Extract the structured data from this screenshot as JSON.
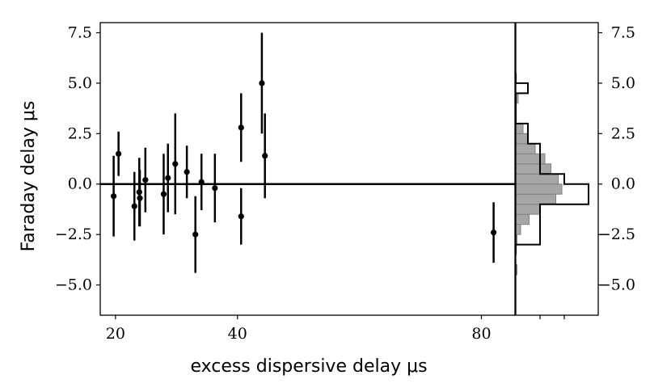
{
  "chart_data": {
    "type": "scatter",
    "xlabel": "excess dispersive delay μs",
    "ylabel": "Faraday delay μs",
    "xlim": [
      17.5,
      85.5
    ],
    "ylim": [
      -6.5,
      8.0
    ],
    "xticks": [
      20,
      40,
      80
    ],
    "yticks": [
      {
        "v": 7.5,
        "label": "7.5"
      },
      {
        "v": 5.0,
        "label": "5.0"
      },
      {
        "v": 2.5,
        "label": "2.5"
      },
      {
        "v": 0.0,
        "label": "0.0"
      },
      {
        "v": -2.5,
        "label": "−2.5"
      },
      {
        "v": -5.0,
        "label": "−5.0"
      }
    ],
    "right_yticks": [
      {
        "v": 7.5,
        "label": "7.5"
      },
      {
        "v": 5.0,
        "label": "5.0"
      },
      {
        "v": 2.5,
        "label": "2.5"
      },
      {
        "v": 0.0,
        "label": "0.0"
      },
      {
        "v": -2.5,
        "label": "−2.5"
      },
      {
        "v": -5.0,
        "label": "−5.0"
      }
    ],
    "reference_line_y": 0.0,
    "points": [
      {
        "x": 19.7,
        "y": -0.6,
        "err": 2.0
      },
      {
        "x": 20.5,
        "y": 1.5,
        "err": 1.1
      },
      {
        "x": 23.1,
        "y": -1.1,
        "err": 1.7
      },
      {
        "x": 23.9,
        "y": -0.4,
        "err": 1.7
      },
      {
        "x": 24.0,
        "y": -0.7,
        "err": 1.4
      },
      {
        "x": 24.9,
        "y": 0.2,
        "err": 1.6
      },
      {
        "x": 27.9,
        "y": -0.5,
        "err": 2.0
      },
      {
        "x": 28.6,
        "y": 0.3,
        "err": 1.7
      },
      {
        "x": 29.8,
        "y": 1.0,
        "err": 2.5
      },
      {
        "x": 31.7,
        "y": 0.6,
        "err": 1.3
      },
      {
        "x": 33.1,
        "y": -2.5,
        "err": 1.9
      },
      {
        "x": 34.1,
        "y": 0.1,
        "err": 1.4
      },
      {
        "x": 36.3,
        "y": -0.2,
        "err": 1.7
      },
      {
        "x": 40.6,
        "y": 2.8,
        "err": 1.7
      },
      {
        "x": 40.6,
        "y": -1.6,
        "err": 1.4
      },
      {
        "x": 44.0,
        "y": 5.0,
        "err": 2.5
      },
      {
        "x": 44.5,
        "y": 1.4,
        "err": 2.1
      },
      {
        "x": 82.0,
        "y": -2.4,
        "err": 1.5
      }
    ],
    "histogram_outline": {
      "bin_width": 0.5,
      "bins": [
        {
          "y0": -3.5,
          "count": 0
        },
        {
          "y0": -3.0,
          "count": 1
        },
        {
          "y0": -2.5,
          "count": 1
        },
        {
          "y0": -2.0,
          "count": 1
        },
        {
          "y0": -1.5,
          "count": 1
        },
        {
          "y0": -1.0,
          "count": 3
        },
        {
          "y0": -0.5,
          "count": 3
        },
        {
          "y0": 0.0,
          "count": 2
        },
        {
          "y0": 0.5,
          "count": 1
        },
        {
          "y0": 1.0,
          "count": 1
        },
        {
          "y0": 1.5,
          "count": 1
        },
        {
          "y0": 2.0,
          "count": 0.5
        },
        {
          "y0": 2.5,
          "count": 0.5
        },
        {
          "y0": 3.0,
          "count": 0
        },
        {
          "y0": 3.5,
          "count": 0
        },
        {
          "y0": 4.0,
          "count": 0
        },
        {
          "y0": 4.5,
          "count": 0.5
        },
        {
          "y0": 5.0,
          "count": 0
        }
      ]
    },
    "histogram_filled": {
      "bin_width": 0.5,
      "color": "#a6a6a6",
      "bins": [
        {
          "y0": -4.5,
          "count": 0.05
        },
        {
          "y0": -4.0,
          "count": 0
        },
        {
          "y0": -3.5,
          "count": 0
        },
        {
          "y0": -3.0,
          "count": 0.05
        },
        {
          "y0": -2.5,
          "count": 0.2
        },
        {
          "y0": -2.0,
          "count": 0.55
        },
        {
          "y0": -1.5,
          "count": 1.0
        },
        {
          "y0": -1.0,
          "count": 1.65
        },
        {
          "y0": -0.5,
          "count": 1.9
        },
        {
          "y0": 0.0,
          "count": 1.75
        },
        {
          "y0": 0.5,
          "count": 1.45
        },
        {
          "y0": 1.0,
          "count": 1.2
        },
        {
          "y0": 1.5,
          "count": 0.8
        },
        {
          "y0": 2.0,
          "count": 0.5
        },
        {
          "y0": 2.5,
          "count": 0.3
        },
        {
          "y0": 3.0,
          "count": 0
        },
        {
          "y0": 3.5,
          "count": 0
        },
        {
          "y0": 4.0,
          "count": 0.1
        },
        {
          "y0": 4.5,
          "count": 0
        }
      ]
    },
    "grid": false,
    "colors": {
      "marker": "#000000",
      "line": "#000000",
      "hist_fill": "#a6a6a6"
    }
  }
}
